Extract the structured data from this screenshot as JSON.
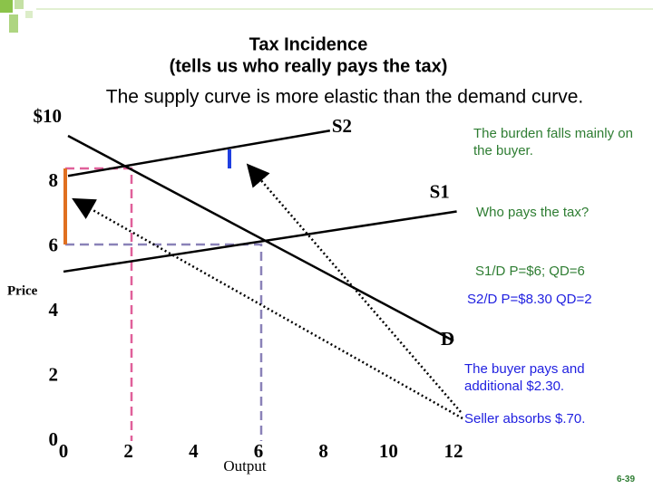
{
  "chart_data": {
    "type": "line",
    "title": "Tax Incidence",
    "subtitle": "(tells us who really pays the tax)",
    "heading": "The supply curve is more elastic than the demand curve.",
    "ylabel": "Price",
    "xlabel": "Output",
    "xlim": [
      0,
      12
    ],
    "ylim": [
      0,
      10
    ],
    "xticks": [
      0,
      2,
      4,
      6,
      8,
      10,
      12
    ],
    "yticks": [
      0,
      2,
      4,
      6,
      8,
      {
        "value": 10,
        "label": "$10"
      }
    ],
    "series": [
      {
        "name": "S2",
        "color": "#000000",
        "x": [
          0.14,
          8.2
        ],
        "values": [
          8.2,
          9.6
        ]
      },
      {
        "name": "S1",
        "color": "#000000",
        "x": [
          0,
          12.1
        ],
        "values": [
          5.24,
          7.1
        ]
      },
      {
        "name": "D",
        "color": "#000000",
        "x": [
          0.14,
          12.0
        ],
        "values": [
          9.44,
          3.1
        ]
      }
    ],
    "annotations": [
      "The burden falls mainly on the buyer.",
      "Who pays the tax?",
      "S1/D P=$6; QD=6",
      "S2/D P=$8.30 QD=2",
      "The buyer pays and additional $2.30.",
      "Seller absorbs $.70."
    ],
    "slide_number": "6-39"
  }
}
